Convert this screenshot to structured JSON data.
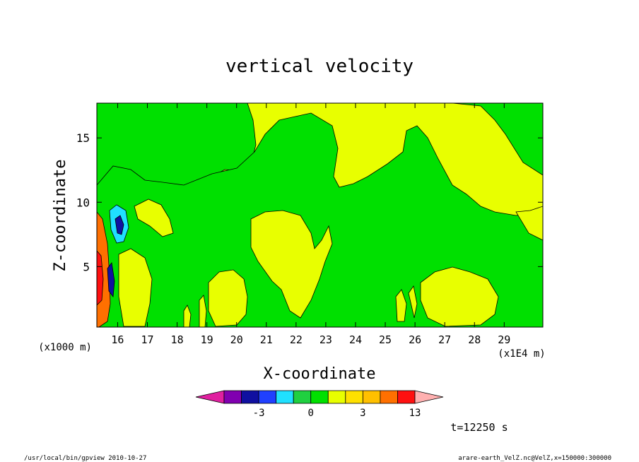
{
  "chart_data": {
    "type": "heatmap",
    "title": "vertical velocity",
    "xlabel": "X-coordinate",
    "ylabel": "Z-coordinate",
    "x_scale_label": "(x1E4 m)",
    "y_scale_label": "(x1000 m)",
    "x_ticks": [
      16,
      17,
      18,
      19,
      20,
      21,
      22,
      23,
      24,
      25,
      26,
      27,
      28,
      29
    ],
    "y_ticks": [
      5,
      10,
      15
    ],
    "xlim": [
      15.3,
      30.3
    ],
    "ylim": [
      0.3,
      17.7
    ],
    "colorbar": {
      "levels": [
        -7,
        -5,
        -4,
        -3,
        -2,
        -1,
        0,
        1,
        2,
        3,
        5,
        9,
        13,
        17
      ],
      "colors": [
        "#e020a0",
        "#8000b0",
        "#1010a0",
        "#2040ff",
        "#20e0ff",
        "#20d040",
        "#00e000",
        "#e8ff00",
        "#ffe000",
        "#ffc000",
        "#ff7000",
        "#ff1010",
        "#ff8080",
        "#ffb0b0"
      ],
      "tick_labels": [
        {
          "value": -3,
          "label": "-3"
        },
        {
          "value": 0,
          "label": "0"
        },
        {
          "value": 3,
          "label": "3"
        },
        {
          "value": 13,
          "label": "13"
        }
      ]
    },
    "time_label": "t=12250 s",
    "footer_left": "/usr/local/bin/gpview   2010-10-27",
    "footer_right": "arare-earth_VelZ.nc@VelZ,x=150000:300000",
    "field_description": "Filled contour field of vertical velocity; values near 0 (green, 0..1) and slightly positive (yellow, 1..2) dominate; strong updraft core (red/orange, up to ~13) and downdraft (blue, ~-3) near the left edge at x≈15.3-15.8, z≈0-9."
  }
}
